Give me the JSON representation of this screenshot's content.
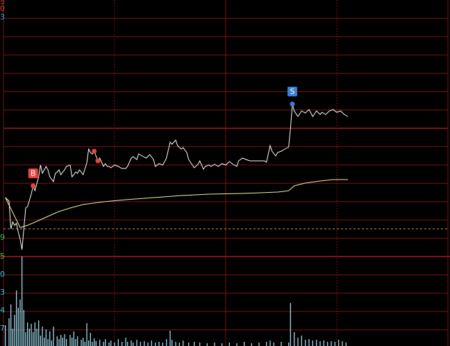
{
  "chart_data": [
    {
      "type": "line",
      "xlim": [
        0,
        240
      ],
      "ylim": [
        -4,
        33
      ],
      "baseline": 0,
      "series": [
        {
          "name": "price",
          "color": "#ffffff",
          "x": [
            1,
            3,
            4,
            5,
            6,
            7,
            8,
            9,
            10,
            11,
            12,
            13,
            15,
            16,
            17,
            18,
            19,
            20,
            21,
            22,
            23,
            24,
            25,
            27,
            28,
            29,
            30,
            31,
            32,
            33,
            34,
            36,
            37,
            38,
            39,
            40,
            41,
            42,
            43,
            45,
            46,
            47,
            48,
            49,
            50,
            51,
            52,
            54,
            55,
            56,
            57,
            58,
            60,
            62,
            64,
            66,
            67,
            69,
            70,
            72,
            73,
            75,
            77,
            79,
            81,
            82,
            84,
            86,
            88,
            90,
            91,
            93,
            94,
            96,
            97,
            99,
            100,
            102,
            103,
            105,
            106,
            108,
            109,
            111,
            112,
            114,
            116,
            118,
            120,
            122,
            124,
            126,
            127,
            129,
            131,
            133,
            135,
            137,
            139,
            141,
            142,
            144,
            145,
            147,
            148,
            150,
            152,
            154,
            155,
            156,
            157,
            159,
            161,
            163,
            165,
            167,
            169,
            171,
            172,
            174,
            176,
            178,
            180,
            182,
            184,
            186
          ],
          "values": [
            4.5,
            4,
            0,
            1,
            0.5,
            0.8,
            -0.5,
            -1.5,
            -3,
            0,
            3,
            3.2,
            5,
            6.2,
            5.5,
            6.5,
            7.5,
            9.2,
            8,
            8.5,
            9,
            8.5,
            7.5,
            6.8,
            8,
            8.2,
            8.5,
            7.8,
            8.2,
            8.5,
            9,
            9.2,
            7.5,
            7.8,
            8.2,
            8,
            8.5,
            8.2,
            7.8,
            9.5,
            11.5,
            11,
            10.8,
            11.2,
            10.5,
            9.8,
            10.2,
            9,
            9.4,
            9,
            9,
            8.8,
            9.2,
            9,
            8.7,
            8.7,
            9,
            10.2,
            10.4,
            10,
            10.8,
            10.5,
            10.2,
            10.7,
            10,
            9,
            9.4,
            9.2,
            10.2,
            12.5,
            12.2,
            12.8,
            12,
            11.5,
            11.7,
            11,
            10,
            9.2,
            8.8,
            9.3,
            9.8,
            8.6,
            9,
            9.2,
            9,
            9.3,
            9,
            9.4,
            9.2,
            9.7,
            9.3,
            9,
            9.8,
            10.2,
            10,
            9.8,
            9.8,
            9.8,
            9.8,
            9.8,
            9.6,
            12,
            11.2,
            10.5,
            11,
            11.2,
            11.5,
            11.8,
            14.5,
            18,
            17,
            16.2,
            17,
            16.7,
            17.2,
            16.2,
            17,
            16.5,
            16.8,
            16.5,
            17,
            17.2,
            16.8,
            17,
            16.5,
            16.2
          ]
        },
        {
          "name": "average",
          "color": "#f4f0a8",
          "x": [
            1,
            9,
            13,
            19,
            24,
            30,
            36,
            43,
            54,
            66,
            81,
            96,
            111,
            129,
            148,
            154,
            157,
            163,
            171,
            178,
            186
          ],
          "values": [
            4.5,
            0.2,
            0.5,
            1.2,
            1.8,
            2.5,
            3,
            3.5,
            3.9,
            4.2,
            4.5,
            4.8,
            5,
            5.1,
            5.3,
            5.5,
            6.2,
            6.6,
            6.9,
            7.1,
            7.1
          ]
        }
      ],
      "markers": [
        {
          "label": "B",
          "x": 16,
          "y": 6.2,
          "color": "#e8453c"
        },
        {
          "x": 49,
          "y": 11.2,
          "color": "#e8453c"
        },
        {
          "x": 51,
          "y": 9.8,
          "color": "#e8453c"
        },
        {
          "label": "S",
          "x": 156,
          "y": 18,
          "color": "#3a7fd0"
        }
      ],
      "axis_fragments": [
        "5",
        "0",
        "3",
        "9",
        "5"
      ]
    },
    {
      "type": "bar",
      "color": "#9fdcee",
      "xlim": [
        0,
        240
      ],
      "ylim": [
        0,
        129
      ],
      "x": [
        1,
        3,
        4,
        5,
        6,
        7,
        8,
        9,
        10,
        11,
        12,
        13,
        14,
        15,
        16,
        17,
        18,
        19,
        20,
        21,
        22,
        23,
        24,
        25,
        26,
        27,
        29,
        30,
        31,
        32,
        33,
        34,
        36,
        37,
        38,
        39,
        40,
        42,
        43,
        44,
        45,
        46,
        47,
        48,
        49,
        50,
        52,
        54,
        55,
        57,
        58,
        60,
        62,
        64,
        66,
        67,
        69,
        70,
        72,
        74,
        76,
        78,
        80,
        82,
        84,
        86,
        88,
        90,
        91,
        93,
        95,
        97,
        100,
        103,
        106,
        110,
        114,
        118,
        122,
        126,
        130,
        134,
        138,
        142,
        144,
        146,
        150,
        154,
        155,
        157,
        159,
        161,
        163,
        165,
        167,
        169,
        171,
        173,
        175,
        177,
        179,
        181,
        183,
        185
      ],
      "values": [
        30,
        40,
        60,
        25,
        45,
        80,
        55,
        67,
        129,
        52,
        20,
        34,
        25,
        32,
        20,
        34,
        25,
        37,
        15,
        28,
        12,
        24,
        10,
        21,
        8,
        28,
        14,
        10,
        16,
        12,
        17,
        10,
        16,
        12,
        21,
        10,
        14,
        9,
        12,
        6,
        33,
        8,
        19,
        6,
        11,
        7,
        9,
        6,
        10,
        5,
        8,
        5,
        10,
        6,
        12,
        6,
        8,
        5,
        9,
        6,
        7,
        5,
        8,
        5,
        6,
        5,
        10,
        22,
        9,
        6,
        5,
        8,
        5,
        6,
        5,
        4,
        5,
        4,
        5,
        4,
        6,
        4,
        5,
        6,
        8,
        5,
        6,
        5,
        62,
        20,
        12,
        15,
        9,
        10,
        8,
        9,
        7,
        8,
        6,
        7,
        6,
        9,
        7,
        5
      ],
      "axis_fragments": [
        "0",
        "3",
        "4",
        "7"
      ]
    }
  ]
}
